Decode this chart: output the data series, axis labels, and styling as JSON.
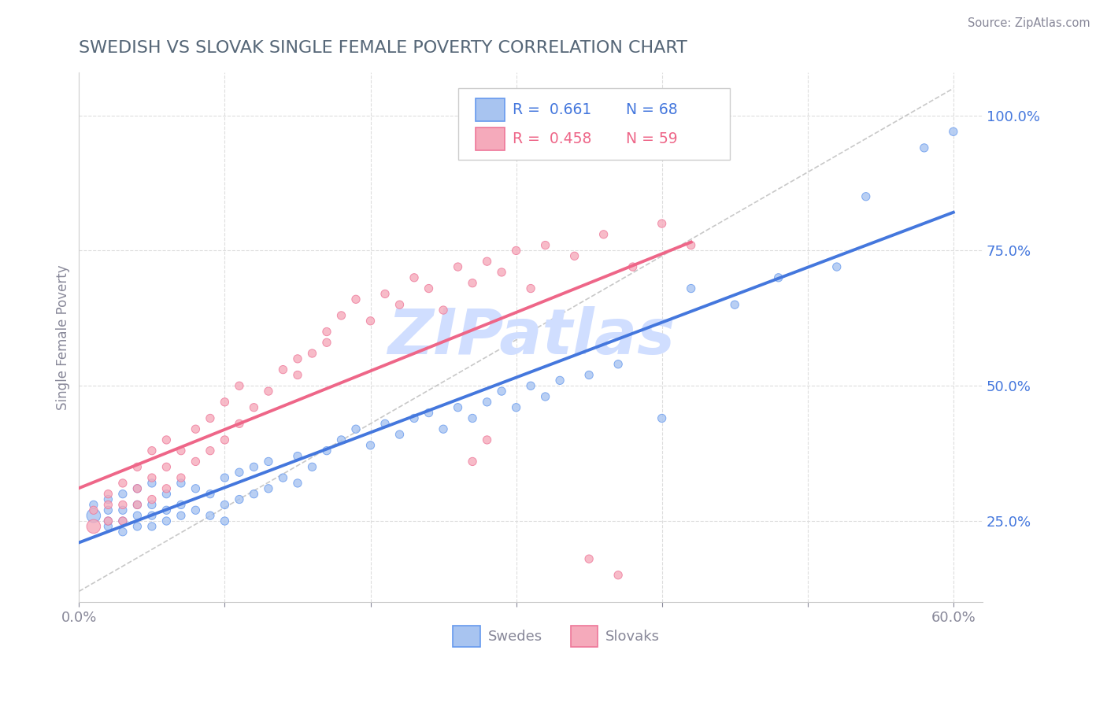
{
  "title": "SWEDISH VS SLOVAK SINGLE FEMALE POVERTY CORRELATION CHART",
  "source": "Source: ZipAtlas.com",
  "ylabel": "Single Female Poverty",
  "xlim": [
    0.0,
    0.62
  ],
  "ylim": [
    0.1,
    1.08
  ],
  "yticks_right": [
    0.25,
    0.5,
    0.75,
    1.0
  ],
  "ytick_right_labels": [
    "25.0%",
    "50.0%",
    "75.0%",
    "100.0%"
  ],
  "swede_fill": "#A8C4F0",
  "swede_edge": "#6699EE",
  "slovak_fill": "#F5AABB",
  "slovak_edge": "#EE7799",
  "trend_swede_color": "#4477DD",
  "trend_slovak_color": "#EE6688",
  "diag_color": "#BBBBBB",
  "R_swede": 0.661,
  "N_swede": 68,
  "R_slovak": 0.458,
  "N_slovak": 59,
  "watermark": "ZIPatlas",
  "watermark_color": "#D0DEFF",
  "legend_label_swede": "Swedes",
  "legend_label_slovak": "Slovaks",
  "background_color": "#FFFFFF",
  "grid_color": "#DDDDDD",
  "title_color": "#556677",
  "axis_label_color": "#888899",
  "right_tick_color": "#4477DD"
}
